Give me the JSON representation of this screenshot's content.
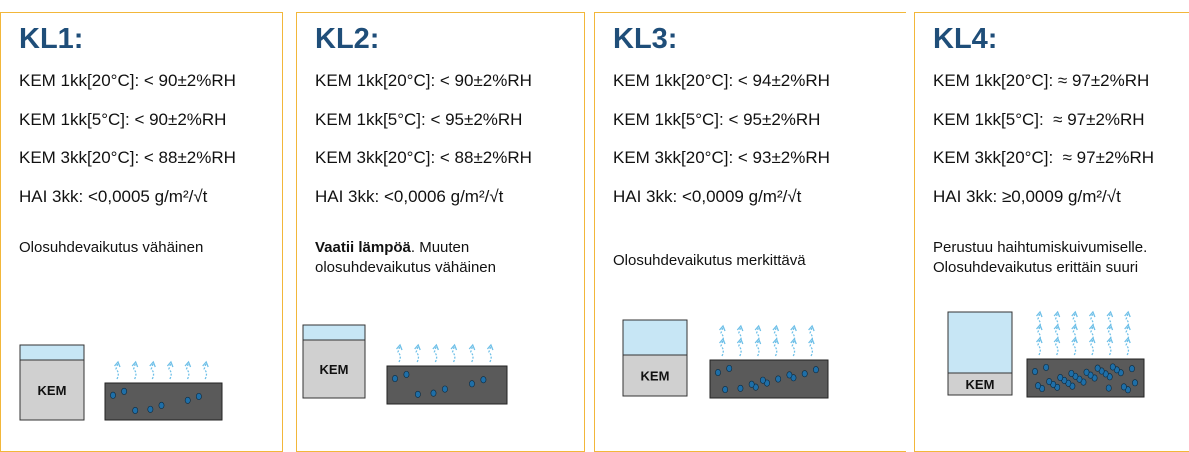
{
  "cards": [
    {
      "title": "KL1:",
      "lines": [
        "KEM 1kk[20°C]: < 90±2%RH",
        "KEM 1kk[5°C]: < 90±2%RH",
        "KEM 3kk[20°C]: < 88±2%RH",
        "HAI 3kk: <0,0005 g/m²/√t"
      ],
      "note": "Olosuhdevaikutus vähäinen",
      "container_label": "KEM"
    },
    {
      "title": "KL2:",
      "lines": [
        "KEM 1kk[20°C]: < 90±2%RH",
        "KEM 1kk[5°C]: < 95±2%RH",
        "KEM 3kk[20°C]: < 88±2%RH",
        "HAI 3kk: <0,0006 g/m²/√t"
      ],
      "note_bold": "Vaatii lämpöä",
      "note": ". Muuten olosuhdevaikutus vähäinen",
      "container_label": "KEM"
    },
    {
      "title": "KL3:",
      "lines": [
        "KEM 1kk[20°C]: < 94±2%RH",
        "KEM 1kk[5°C]: < 95±2%RH",
        "KEM 3kk[20°C]: < 93±2%RH",
        "HAI 3kk: <0,0009 g/m²/√t"
      ],
      "note": "Olosuhdevaikutus merkittävä",
      "container_label": "KEM"
    },
    {
      "title": "KL4:",
      "lines": [
        "KEM 1kk[20°C]: ≈ 97±2%RH",
        "KEM 1kk[5°C]:  ≈ 97±2%RH",
        "KEM 3kk[20°C]:  ≈ 97±2%RH",
        "HAI 3kk: ≥0,0009 g/m²/√t"
      ],
      "note": "Perustuu haihtumiskuivumiselle. Olosuhdevaikutus erittäin suuri",
      "container_label": "KEM"
    }
  ]
}
